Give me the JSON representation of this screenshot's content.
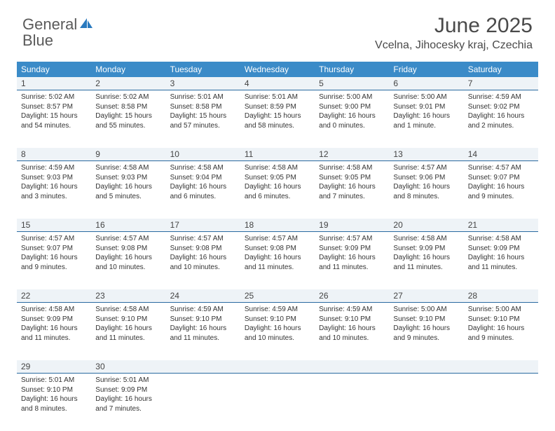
{
  "brand": {
    "name_a": "General",
    "name_b": "Blue"
  },
  "title": "June 2025",
  "location": "Vcelna, Jihocesky kraj, Czechia",
  "colors": {
    "header_bg": "#3b8bc8",
    "header_text": "#ffffff",
    "daynum_bg": "#eef3f7",
    "daynum_border": "#2a6aa0",
    "body_text": "#333333",
    "logo_gray": "#5a5a5a",
    "logo_blue": "#2a7abf"
  },
  "weekdays": [
    "Sunday",
    "Monday",
    "Tuesday",
    "Wednesday",
    "Thursday",
    "Friday",
    "Saturday"
  ],
  "weeks": [
    [
      {
        "n": "1",
        "sunrise": "5:02 AM",
        "sunset": "8:57 PM",
        "daylight": "15 hours and 54 minutes."
      },
      {
        "n": "2",
        "sunrise": "5:02 AM",
        "sunset": "8:58 PM",
        "daylight": "15 hours and 55 minutes."
      },
      {
        "n": "3",
        "sunrise": "5:01 AM",
        "sunset": "8:58 PM",
        "daylight": "15 hours and 57 minutes."
      },
      {
        "n": "4",
        "sunrise": "5:01 AM",
        "sunset": "8:59 PM",
        "daylight": "15 hours and 58 minutes."
      },
      {
        "n": "5",
        "sunrise": "5:00 AM",
        "sunset": "9:00 PM",
        "daylight": "16 hours and 0 minutes."
      },
      {
        "n": "6",
        "sunrise": "5:00 AM",
        "sunset": "9:01 PM",
        "daylight": "16 hours and 1 minute."
      },
      {
        "n": "7",
        "sunrise": "4:59 AM",
        "sunset": "9:02 PM",
        "daylight": "16 hours and 2 minutes."
      }
    ],
    [
      {
        "n": "8",
        "sunrise": "4:59 AM",
        "sunset": "9:03 PM",
        "daylight": "16 hours and 3 minutes."
      },
      {
        "n": "9",
        "sunrise": "4:58 AM",
        "sunset": "9:03 PM",
        "daylight": "16 hours and 5 minutes."
      },
      {
        "n": "10",
        "sunrise": "4:58 AM",
        "sunset": "9:04 PM",
        "daylight": "16 hours and 6 minutes."
      },
      {
        "n": "11",
        "sunrise": "4:58 AM",
        "sunset": "9:05 PM",
        "daylight": "16 hours and 6 minutes."
      },
      {
        "n": "12",
        "sunrise": "4:58 AM",
        "sunset": "9:05 PM",
        "daylight": "16 hours and 7 minutes."
      },
      {
        "n": "13",
        "sunrise": "4:57 AM",
        "sunset": "9:06 PM",
        "daylight": "16 hours and 8 minutes."
      },
      {
        "n": "14",
        "sunrise": "4:57 AM",
        "sunset": "9:07 PM",
        "daylight": "16 hours and 9 minutes."
      }
    ],
    [
      {
        "n": "15",
        "sunrise": "4:57 AM",
        "sunset": "9:07 PM",
        "daylight": "16 hours and 9 minutes."
      },
      {
        "n": "16",
        "sunrise": "4:57 AM",
        "sunset": "9:08 PM",
        "daylight": "16 hours and 10 minutes."
      },
      {
        "n": "17",
        "sunrise": "4:57 AM",
        "sunset": "9:08 PM",
        "daylight": "16 hours and 10 minutes."
      },
      {
        "n": "18",
        "sunrise": "4:57 AM",
        "sunset": "9:08 PM",
        "daylight": "16 hours and 11 minutes."
      },
      {
        "n": "19",
        "sunrise": "4:57 AM",
        "sunset": "9:09 PM",
        "daylight": "16 hours and 11 minutes."
      },
      {
        "n": "20",
        "sunrise": "4:58 AM",
        "sunset": "9:09 PM",
        "daylight": "16 hours and 11 minutes."
      },
      {
        "n": "21",
        "sunrise": "4:58 AM",
        "sunset": "9:09 PM",
        "daylight": "16 hours and 11 minutes."
      }
    ],
    [
      {
        "n": "22",
        "sunrise": "4:58 AM",
        "sunset": "9:09 PM",
        "daylight": "16 hours and 11 minutes."
      },
      {
        "n": "23",
        "sunrise": "4:58 AM",
        "sunset": "9:10 PM",
        "daylight": "16 hours and 11 minutes."
      },
      {
        "n": "24",
        "sunrise": "4:59 AM",
        "sunset": "9:10 PM",
        "daylight": "16 hours and 11 minutes."
      },
      {
        "n": "25",
        "sunrise": "4:59 AM",
        "sunset": "9:10 PM",
        "daylight": "16 hours and 10 minutes."
      },
      {
        "n": "26",
        "sunrise": "4:59 AM",
        "sunset": "9:10 PM",
        "daylight": "16 hours and 10 minutes."
      },
      {
        "n": "27",
        "sunrise": "5:00 AM",
        "sunset": "9:10 PM",
        "daylight": "16 hours and 9 minutes."
      },
      {
        "n": "28",
        "sunrise": "5:00 AM",
        "sunset": "9:10 PM",
        "daylight": "16 hours and 9 minutes."
      }
    ],
    [
      {
        "n": "29",
        "sunrise": "5:01 AM",
        "sunset": "9:10 PM",
        "daylight": "16 hours and 8 minutes."
      },
      {
        "n": "30",
        "sunrise": "5:01 AM",
        "sunset": "9:09 PM",
        "daylight": "16 hours and 7 minutes."
      },
      {
        "empty": true
      },
      {
        "empty": true
      },
      {
        "empty": true
      },
      {
        "empty": true
      },
      {
        "empty": true
      }
    ]
  ],
  "labels": {
    "sunrise": "Sunrise:",
    "sunset": "Sunset:",
    "daylight": "Daylight:"
  }
}
